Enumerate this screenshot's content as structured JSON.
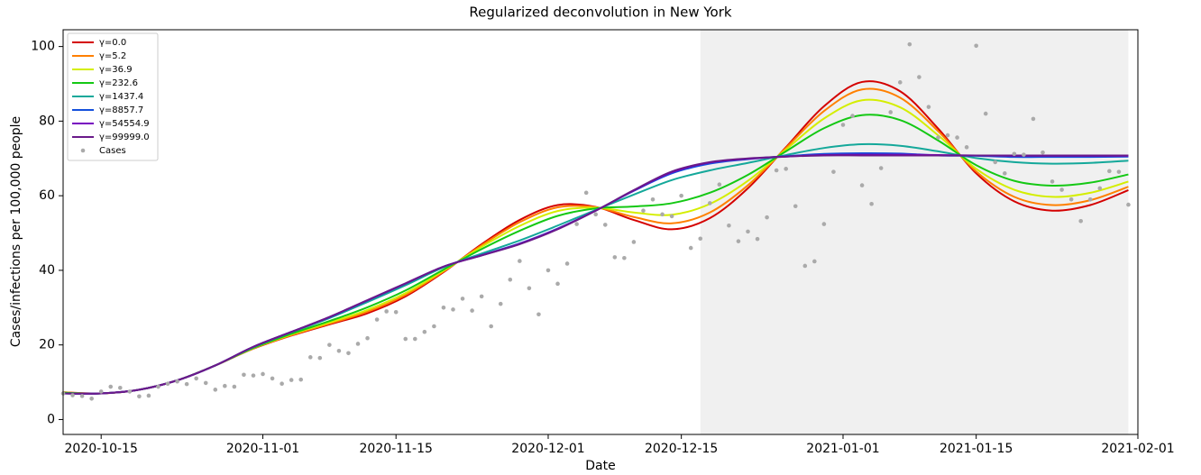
{
  "chart_data": {
    "type": "line",
    "title": "Regularized deconvolution in New York",
    "xlabel": "Date",
    "ylabel": "Cases/infections per 100,000 people",
    "xlim": [
      "2020-10-11",
      "2021-02-01"
    ],
    "xticks": [
      "2020-10-15",
      "2020-11-01",
      "2020-11-15",
      "2020-12-01",
      "2020-12-15",
      "2021-01-01",
      "2021-01-15",
      "2021-02-01"
    ],
    "ylim": [
      -4,
      104.5
    ],
    "yticks": [
      0,
      20,
      40,
      60,
      80,
      100
    ],
    "shaded_region": [
      "2020-12-17",
      "2021-01-31"
    ],
    "legend": "upper left",
    "x": [
      "2020-10-11",
      "2020-10-15",
      "2020-10-19",
      "2020-10-23",
      "2020-10-27",
      "2020-10-31",
      "2020-11-04",
      "2020-11-08",
      "2020-11-12",
      "2020-11-16",
      "2020-11-20",
      "2020-11-24",
      "2020-11-28",
      "2020-12-02",
      "2020-12-06",
      "2020-12-10",
      "2020-12-14",
      "2020-12-18",
      "2020-12-22",
      "2020-12-26",
      "2020-12-30",
      "2021-01-03",
      "2021-01-07",
      "2021-01-11",
      "2021-01-15",
      "2021-01-19",
      "2021-01-23",
      "2021-01-27",
      "2021-01-31"
    ],
    "series": [
      {
        "name": "γ=0.0",
        "color": "#d40000",
        "values": [
          7.3,
          7.0,
          8.0,
          10.5,
          14.5,
          19.0,
          22.5,
          25.5,
          28.5,
          33.0,
          39.5,
          47.0,
          53.5,
          57.5,
          57.0,
          53.5,
          51.0,
          54.0,
          62.0,
          73.0,
          84.0,
          90.5,
          88.0,
          78.0,
          66.0,
          58.5,
          56.0,
          57.5,
          61.5
        ]
      },
      {
        "name": "γ=5.2",
        "color": "#ff8000",
        "values": [
          7.3,
          7.0,
          8.0,
          10.5,
          14.5,
          19.1,
          22.6,
          25.7,
          28.9,
          33.4,
          39.7,
          46.7,
          52.9,
          56.9,
          56.9,
          54.3,
          52.6,
          55.5,
          62.8,
          72.8,
          82.7,
          88.5,
          86.3,
          77.3,
          66.5,
          59.7,
          57.5,
          58.8,
          62.4
        ]
      },
      {
        "name": "γ=36.9",
        "color": "#d4ee00",
        "values": [
          7.2,
          7.0,
          8.0,
          10.5,
          14.5,
          19.1,
          22.8,
          26.0,
          29.4,
          33.9,
          39.9,
          46.3,
          51.9,
          55.9,
          56.8,
          55.5,
          54.9,
          57.8,
          64.0,
          72.4,
          80.7,
          85.6,
          83.7,
          76.2,
          67.2,
          61.6,
          59.7,
          60.8,
          63.8
        ]
      },
      {
        "name": "γ=232.6",
        "color": "#14c814",
        "values": [
          7.2,
          7.0,
          8.0,
          10.5,
          14.5,
          19.2,
          23.0,
          26.4,
          30.1,
          34.6,
          40.2,
          45.7,
          50.6,
          54.6,
          56.6,
          57.1,
          58.0,
          60.8,
          65.6,
          71.9,
          78.1,
          81.6,
          80.3,
          74.8,
          68.2,
          64.0,
          62.7,
          63.5,
          65.7
        ]
      },
      {
        "name": "γ=1437.4",
        "color": "#14a89a",
        "values": [
          7.0,
          7.0,
          8.0,
          10.5,
          14.5,
          19.4,
          23.4,
          27.2,
          31.5,
          36.0,
          40.8,
          44.5,
          48.0,
          52.0,
          56.2,
          60.3,
          64.2,
          66.8,
          68.8,
          70.9,
          72.8,
          73.8,
          73.4,
          71.9,
          70.1,
          69.0,
          68.6,
          68.8,
          69.4
        ]
      },
      {
        "name": "γ=8857.7",
        "color": "#1450dc",
        "values": [
          7.0,
          7.0,
          8.0,
          10.5,
          14.5,
          19.5,
          23.5,
          27.4,
          31.9,
          36.4,
          41.0,
          44.1,
          47.2,
          51.2,
          56.0,
          61.3,
          66.0,
          68.6,
          69.8,
          70.6,
          71.2,
          71.4,
          71.3,
          70.8,
          70.7,
          70.4,
          70.4,
          70.4,
          70.5
        ]
      },
      {
        "name": "γ=54554.9",
        "color": "#7800c0",
        "values": [
          7.0,
          7.0,
          8.0,
          10.5,
          14.5,
          19.5,
          23.5,
          27.5,
          32.0,
          36.5,
          41.0,
          44.0,
          47.1,
          51.1,
          56.0,
          61.4,
          66.3,
          68.9,
          69.9,
          70.5,
          70.9,
          71.0,
          71.0,
          70.9,
          70.8,
          70.7,
          70.7,
          70.7,
          70.7
        ]
      },
      {
        "name": "γ=99999.0",
        "color": "#6a1a8a",
        "values": [
          7.0,
          7.0,
          8.0,
          10.5,
          14.5,
          19.5,
          23.5,
          27.5,
          32.0,
          36.5,
          41.0,
          44.0,
          47.0,
          51.0,
          56.0,
          61.5,
          66.5,
          69.0,
          70.0,
          70.5,
          70.8,
          70.8,
          70.8,
          70.8,
          70.8,
          70.8,
          70.8,
          70.8,
          70.8
        ]
      },
      {
        "name": "Cases",
        "type": "scatter",
        "color": "#aaaaaa",
        "x": [
          "2020-10-11",
          "2020-10-12",
          "2020-10-13",
          "2020-10-14",
          "2020-10-15",
          "2020-10-16",
          "2020-10-17",
          "2020-10-18",
          "2020-10-19",
          "2020-10-20",
          "2020-10-21",
          "2020-10-22",
          "2020-10-23",
          "2020-10-24",
          "2020-10-25",
          "2020-10-26",
          "2020-10-27",
          "2020-10-28",
          "2020-10-29",
          "2020-10-30",
          "2020-10-31",
          "2020-11-01",
          "2020-11-02",
          "2020-11-03",
          "2020-11-04",
          "2020-11-05",
          "2020-11-06",
          "2020-11-07",
          "2020-11-08",
          "2020-11-09",
          "2020-11-10",
          "2020-11-11",
          "2020-11-12",
          "2020-11-13",
          "2020-11-14",
          "2020-11-15",
          "2020-11-16",
          "2020-11-17",
          "2020-11-18",
          "2020-11-19",
          "2020-11-20",
          "2020-11-21",
          "2020-11-22",
          "2020-11-23",
          "2020-11-24",
          "2020-11-25",
          "2020-11-26",
          "2020-11-27",
          "2020-11-28",
          "2020-11-29",
          "2020-11-30",
          "2020-12-01",
          "2020-12-02",
          "2020-12-03",
          "2020-12-04",
          "2020-12-05",
          "2020-12-06",
          "2020-12-07",
          "2020-12-08",
          "2020-12-09",
          "2020-12-10",
          "2020-12-11",
          "2020-12-12",
          "2020-12-13",
          "2020-12-14",
          "2020-12-15",
          "2020-12-16",
          "2020-12-17",
          "2020-12-18",
          "2020-12-19",
          "2020-12-20",
          "2020-12-21",
          "2020-12-22",
          "2020-12-23",
          "2020-12-24",
          "2020-12-25",
          "2020-12-26",
          "2020-12-27",
          "2020-12-28",
          "2020-12-29",
          "2020-12-30",
          "2020-12-31",
          "2021-01-01",
          "2021-01-02",
          "2021-01-03",
          "2021-01-04",
          "2021-01-05",
          "2021-01-06",
          "2021-01-07",
          "2021-01-08",
          "2021-01-09",
          "2021-01-10",
          "2021-01-11",
          "2021-01-12",
          "2021-01-13",
          "2021-01-14",
          "2021-01-15",
          "2021-01-16",
          "2021-01-17",
          "2021-01-18",
          "2021-01-19",
          "2021-01-20",
          "2021-01-21",
          "2021-01-22",
          "2021-01-23",
          "2021-01-24",
          "2021-01-25",
          "2021-01-26",
          "2021-01-27",
          "2021-01-28",
          "2021-01-29",
          "2021-01-30",
          "2021-01-31"
        ],
        "values": [
          7.0,
          6.5,
          6.3,
          5.6,
          7.5,
          8.8,
          8.5,
          7.5,
          6.2,
          6.4,
          8.8,
          9.6,
          10.2,
          9.5,
          11.0,
          9.8,
          8.0,
          9.0,
          8.8,
          12.0,
          11.8,
          12.2,
          11.0,
          9.6,
          10.6,
          10.7,
          16.7,
          16.5,
          20.0,
          18.4,
          17.8,
          20.3,
          21.8,
          26.8,
          29.0,
          28.8,
          21.6,
          21.6,
          23.5,
          25.0,
          30.0,
          29.5,
          32.4,
          29.2,
          33.0,
          25.0,
          31.0,
          37.5,
          42.5,
          35.2,
          28.2,
          40.0,
          36.4,
          41.8,
          52.4,
          60.8,
          55.0,
          52.2,
          43.5,
          43.3,
          47.6,
          56.0,
          59.0,
          55.0,
          54.5,
          60.0,
          46.0,
          48.5,
          58.0,
          63.0,
          52.0,
          47.8,
          50.4,
          48.4,
          54.2,
          66.8,
          67.2,
          57.2,
          41.2,
          42.4,
          52.4,
          66.4,
          79.0,
          81.4,
          62.8,
          57.8,
          67.4,
          82.4,
          90.4,
          100.6,
          91.8,
          83.8,
          75.6,
          76.2,
          75.6,
          73.0,
          100.2,
          82.0,
          69.0,
          66.0,
          71.2,
          71.0,
          80.6,
          71.6,
          63.8,
          61.6,
          59.0,
          53.2,
          59.0,
          62.0,
          66.6,
          66.4,
          57.6
        ]
      }
    ]
  }
}
